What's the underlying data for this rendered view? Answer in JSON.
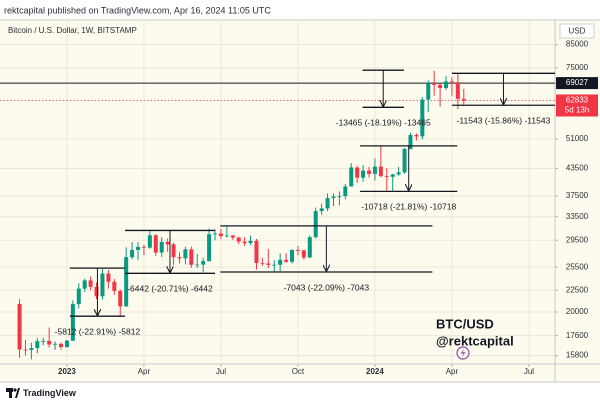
{
  "header": {
    "publisher_line": "rektcapital published on TradingView.com, Apr 16, 2024 11:05 UTC"
  },
  "footer": {
    "brand": "TradingView"
  },
  "chart_data": {
    "type": "candlestick",
    "title": "Bitcoin / U.S. Dollar, 1W, BITSTAMP",
    "currency_label": "USD",
    "up_color": "#089981",
    "down_color": "#f23645",
    "log_scale": true,
    "grid": true,
    "xlim": [
      -0.3,
      93.4
    ],
    "xticks": [
      {
        "value": 11,
        "label": "2023"
      },
      {
        "value": 24,
        "label": "Apr"
      },
      {
        "value": 37,
        "label": "Jul"
      },
      {
        "value": 50,
        "label": "Oct"
      },
      {
        "value": 63,
        "label": "2024"
      },
      {
        "value": 76,
        "label": "Apr"
      },
      {
        "value": 89,
        "label": "Jul"
      }
    ],
    "ylim": [
      15100,
      92000
    ],
    "yticks": [
      85000,
      75000,
      51000,
      43500,
      37500,
      33500,
      29500,
      25500,
      22500,
      20000,
      17600,
      15800
    ],
    "x": [
      3,
      4,
      5,
      6,
      7,
      8,
      9,
      10,
      11,
      12,
      13,
      14,
      15,
      16,
      17,
      18,
      19,
      20,
      21,
      22,
      23,
      24,
      25,
      26,
      27,
      28,
      29,
      30,
      31,
      32,
      33,
      34,
      35,
      36,
      37,
      38,
      39,
      40,
      41,
      42,
      43,
      44,
      45,
      46,
      47,
      48,
      49,
      50,
      51,
      52,
      53,
      54,
      55,
      56,
      57,
      58,
      59,
      60,
      61,
      62,
      63,
      64,
      65,
      66,
      67,
      68,
      69,
      70,
      71,
      72,
      73,
      74,
      75,
      76,
      77,
      78
    ],
    "open": [
      20900,
      16330,
      16290,
      16460,
      17090,
      17100,
      16780,
      16840,
      16550,
      17130,
      20880,
      22710,
      23740,
      22930,
      21780,
      24630,
      23560,
      22430,
      20620,
      26920,
      27990,
      28450,
      28330,
      30300,
      27590,
      29230,
      28850,
      26920,
      26750,
      28080,
      25830,
      25850,
      26340,
      30470,
      30590,
      30160,
      30250,
      29920,
      29280,
      29050,
      29410,
      26090,
      26010,
      25820,
      25830,
      26530,
      26250,
      27980,
      27930,
      26870,
      29990,
      34530,
      35040,
      37060,
      37380,
      37460,
      39470,
      43720,
      41370,
      42990,
      42240,
      43940,
      41730,
      41580,
      42120,
      42580,
      48300,
      52140,
      51730,
      63120,
      68980,
      68370,
      67220,
      69650,
      69360,
      63400
    ],
    "high": [
      21450,
      17190,
      16950,
      17400,
      17420,
      18400,
      17060,
      16950,
      17200,
      21300,
      23370,
      23960,
      24240,
      23450,
      25250,
      25130,
      23900,
      22600,
      28400,
      29200,
      29200,
      28800,
      31000,
      30500,
      30000,
      29800,
      29100,
      27650,
      28450,
      28500,
      27400,
      26800,
      31400,
      31280,
      31380,
      31800,
      30350,
      30050,
      29990,
      30250,
      29700,
      26800,
      28150,
      26450,
      27480,
      27480,
      28100,
      28600,
      28000,
      30300,
      35200,
      35960,
      38000,
      37980,
      38420,
      39990,
      44750,
      44100,
      44300,
      43820,
      45900,
      49050,
      43570,
      42250,
      43850,
      48600,
      52800,
      52600,
      64000,
      70100,
      73780,
      68920,
      71770,
      71300,
      72800,
      66900
    ],
    "low": [
      15600,
      15800,
      15480,
      16000,
      16700,
      16500,
      16300,
      16330,
      16500,
      17100,
      20400,
      22300,
      22500,
      21450,
      21400,
      22700,
      21950,
      19560,
      20600,
      26600,
      26500,
      27200,
      28170,
      27100,
      26950,
      27700,
      25800,
      26000,
      25900,
      25400,
      25400,
      24800,
      26300,
      29500,
      29700,
      29950,
      29600,
      28900,
      28600,
      28700,
      25200,
      25700,
      25400,
      24900,
      24950,
      26100,
      26000,
      27200,
      26530,
      26800,
      29800,
      33900,
      34530,
      35500,
      35630,
      36800,
      39400,
      40200,
      40500,
      41400,
      40750,
      41500,
      38500,
      38550,
      41800,
      42250,
      48300,
      50600,
      50900,
      59000,
      64500,
      60800,
      66500,
      64500,
      60000,
      61500
    ],
    "close": [
      16330,
      16290,
      16460,
      17090,
      17100,
      16780,
      16840,
      16550,
      17130,
      20880,
      22710,
      23740,
      22930,
      21780,
      24630,
      23560,
      22430,
      20620,
      26920,
      27990,
      28450,
      28330,
      30300,
      27590,
      29230,
      28850,
      26920,
      26750,
      28080,
      25830,
      25850,
      26340,
      30470,
      30590,
      30160,
      30250,
      29920,
      29280,
      29050,
      29410,
      26090,
      26010,
      25820,
      25830,
      26530,
      26250,
      27980,
      27930,
      26870,
      29990,
      34530,
      35040,
      37060,
      37380,
      37460,
      39470,
      43720,
      41370,
      42990,
      42240,
      43940,
      41730,
      41580,
      42120,
      42580,
      48300,
      52140,
      51730,
      63120,
      68980,
      68370,
      67220,
      69650,
      69360,
      63400,
      62833
    ],
    "price_lines": [
      {
        "value": 69027,
        "color": "#131722",
        "style": "solid"
      },
      {
        "value": 62833,
        "color": "#f23645",
        "style": "dotted",
        "countdown": "5d 13h"
      }
    ],
    "measures": [
      {
        "label": "-5812 (-22.91%) -5812",
        "from": 25369,
        "to": 19557,
        "x": [
          11.5,
          20.8
        ]
      },
      {
        "label": "-6442 (-20.71%) -6442",
        "from": 31106,
        "to": 24664,
        "x": [
          20.8,
          36
        ]
      },
      {
        "label": "-7043 (-22.09%) -7043",
        "from": 31883,
        "to": 24840,
        "x": [
          36.9,
          72.7
        ]
      },
      {
        "label": "-10718 (-21.81%) -10718",
        "from": 49143,
        "to": 38425,
        "x": [
          60.5,
          76.9
        ]
      },
      {
        "label": "-13465 (-18.19%) -13465",
        "from": 74024,
        "to": 60559,
        "x": [
          60.9,
          67.9
        ]
      },
      {
        "label": "-11543 (-15.86%) -11543",
        "from": 72781,
        "to": 61238,
        "x": [
          76,
          93.4
        ]
      }
    ],
    "watermark": [
      "BTC/USD",
      "@rektcapital"
    ]
  }
}
